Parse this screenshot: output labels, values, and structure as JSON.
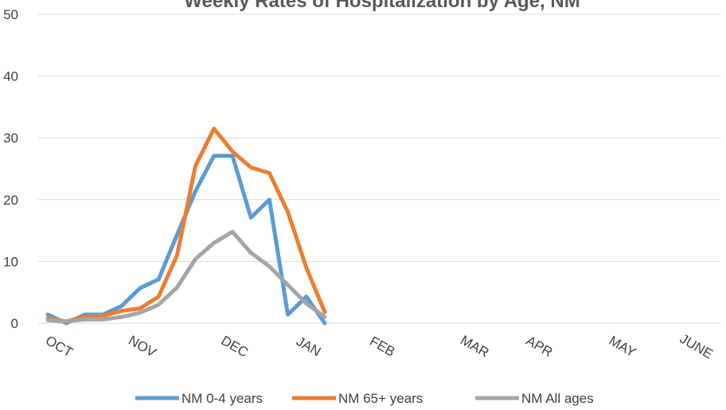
{
  "chart_data": {
    "type": "line",
    "title": "Weekly Rates of Hospitalization by Age, NM",
    "xlabel": "",
    "ylabel": "",
    "ylim": [
      0,
      50
    ],
    "yticks": [
      "0",
      "10",
      "20",
      "30",
      "40",
      "50"
    ],
    "grid": "horizontal",
    "legend_position": "bottom",
    "x_tick_labels": [
      "OCT",
      "NOV",
      "DEC",
      "JAN",
      "FEB",
      "MAR",
      "APR",
      "MAY",
      "JUNE"
    ],
    "x_tick_weeks": [
      0.5,
      5,
      10,
      14,
      18,
      23,
      26.5,
      31,
      35
    ],
    "series": [
      {
        "name": "NM 0-4 years",
        "color": "#5B9BD5",
        "x": [
          0,
          1,
          2,
          3,
          4,
          5,
          6,
          7,
          8,
          9,
          10,
          11,
          12,
          13,
          14,
          15
        ],
        "values": [
          1.4,
          0,
          1.4,
          1.4,
          2.8,
          5.7,
          7.1,
          14.3,
          21.4,
          27.1,
          27.1,
          17.1,
          20.0,
          1.4,
          4.3,
          0
        ]
      },
      {
        "name": "NM 65+ years",
        "color": "#ED7D31",
        "x": [
          0,
          1,
          2,
          3,
          4,
          5,
          6,
          7,
          8,
          9,
          10,
          11,
          12,
          13,
          14,
          15
        ],
        "values": [
          0.8,
          0.3,
          1.0,
          1.2,
          2.0,
          2.4,
          4.3,
          11.0,
          25.5,
          31.5,
          27.8,
          25.2,
          24.3,
          18.0,
          9.0,
          1.8
        ]
      },
      {
        "name": "NM All ages",
        "color": "#A5A5A5",
        "x": [
          0,
          1,
          2,
          3,
          4,
          5,
          6,
          7,
          8,
          9,
          10,
          11,
          12,
          13,
          14,
          15
        ],
        "values": [
          0.5,
          0.3,
          0.6,
          0.6,
          1.0,
          1.7,
          3.0,
          5.8,
          10.4,
          13.0,
          14.8,
          11.4,
          9.2,
          6.2,
          3.2,
          1.0
        ]
      }
    ]
  }
}
